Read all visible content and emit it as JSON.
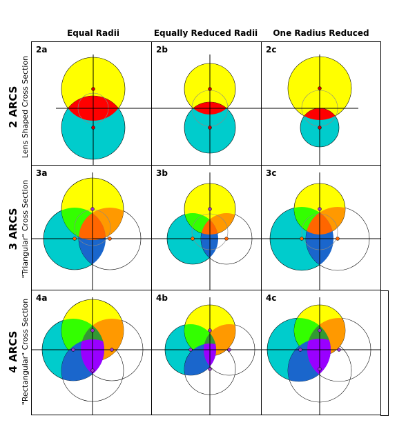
{
  "columns": {
    "equal": "Equal Radii",
    "equally_reduced": "Equally Reduced Radii",
    "one_reduced": "One Radius Reduced"
  },
  "rows": {
    "two": {
      "title": "2 ARCS",
      "subtitle": "Lens Shaped Cross Section"
    },
    "three": {
      "title": "3 ARCS",
      "subtitle": "\"Triangular\" Cross Section"
    },
    "four": {
      "title": "4 ARCS",
      "subtitle": "\"Rectangular\" Cross Section"
    }
  },
  "cells": {
    "2a": "2a",
    "2b": "2b",
    "2c": "2c",
    "3a": "3a",
    "3b": "3b",
    "3c": "3c",
    "4a": "4a",
    "4b": "4b",
    "4c": "4c"
  },
  "colors": {
    "yellow": "#ffff00",
    "cyan": "#00cccc",
    "red": "#ff0000",
    "green": "#33ff00",
    "orange": "#ff9900",
    "dark_orange": "#ff6600",
    "blue": "#1a66cc",
    "purple": "#9900ff",
    "dark_green": "#339933",
    "marker": "#cc0000"
  }
}
